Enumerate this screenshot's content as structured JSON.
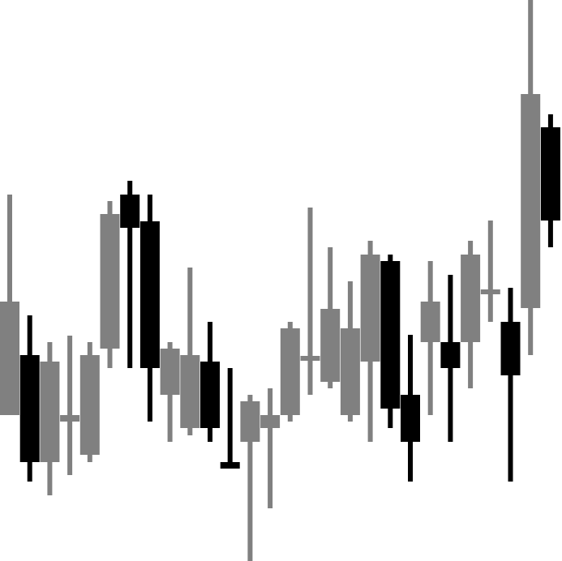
{
  "chart_data": {
    "type": "candlestick",
    "title": "",
    "xlabel": "",
    "ylabel": "",
    "axes_visible": false,
    "grid": false,
    "ylim": [
      0,
      692
    ],
    "colors": {
      "up": "#808080",
      "down": "#000000",
      "background": "#ffffff"
    },
    "candles": [
      {
        "i": 0,
        "open": 180,
        "close": 320,
        "high": 452,
        "low": 180
      },
      {
        "i": 1,
        "open": 254,
        "close": 122,
        "high": 303,
        "low": 98
      },
      {
        "i": 2,
        "open": 122,
        "close": 246,
        "high": 270,
        "low": 81
      },
      {
        "i": 3,
        "open": 172,
        "close": 180,
        "high": 278,
        "low": 106
      },
      {
        "i": 4,
        "open": 131,
        "close": 254,
        "high": 270,
        "low": 122
      },
      {
        "i": 5,
        "open": 262,
        "close": 428,
        "high": 444,
        "low": 238
      },
      {
        "i": 6,
        "open": 452,
        "close": 411,
        "high": 469,
        "low": 238
      },
      {
        "i": 7,
        "open": 419,
        "close": 238,
        "high": 452,
        "low": 172
      },
      {
        "i": 8,
        "open": 205,
        "close": 262,
        "high": 270,
        "low": 147
      },
      {
        "i": 9,
        "open": 164,
        "close": 254,
        "high": 362,
        "low": 155
      },
      {
        "i": 10,
        "open": 246,
        "close": 164,
        "high": 295,
        "low": 147
      },
      {
        "i": 11,
        "open": 122,
        "close": 114,
        "high": 238,
        "low": 114
      },
      {
        "i": 12,
        "open": 147,
        "close": 197,
        "high": 205,
        "low": 0
      },
      {
        "i": 13,
        "open": 164,
        "close": 180,
        "high": 213,
        "low": 65
      },
      {
        "i": 14,
        "open": 180,
        "close": 287,
        "high": 295,
        "low": 172
      },
      {
        "i": 15,
        "open": 250,
        "close": 250,
        "high": 436,
        "low": 205
      },
      {
        "i": 16,
        "open": 221,
        "close": 311,
        "high": 387,
        "low": 213
      },
      {
        "i": 17,
        "open": 180,
        "close": 287,
        "high": 345,
        "low": 172
      },
      {
        "i": 18,
        "open": 246,
        "close": 378,
        "high": 395,
        "low": 147
      },
      {
        "i": 19,
        "open": 370,
        "close": 188,
        "high": 378,
        "low": 164
      },
      {
        "i": 20,
        "open": 205,
        "close": 147,
        "high": 279,
        "low": 98
      },
      {
        "i": 21,
        "open": 270,
        "close": 320,
        "high": 370,
        "low": 180
      },
      {
        "i": 22,
        "open": 270,
        "close": 238,
        "high": 353,
        "low": 147
      },
      {
        "i": 23,
        "open": 270,
        "close": 378,
        "high": 395,
        "low": 213
      },
      {
        "i": 24,
        "open": 332,
        "close": 332,
        "high": 420,
        "low": 295
      },
      {
        "i": 25,
        "open": 295,
        "close": 229,
        "high": 337,
        "low": 98
      },
      {
        "i": 26,
        "open": 312,
        "close": 576,
        "high": 692,
        "low": 254
      },
      {
        "i": 27,
        "open": 535,
        "close": 420,
        "high": 551,
        "low": 387
      }
    ]
  }
}
